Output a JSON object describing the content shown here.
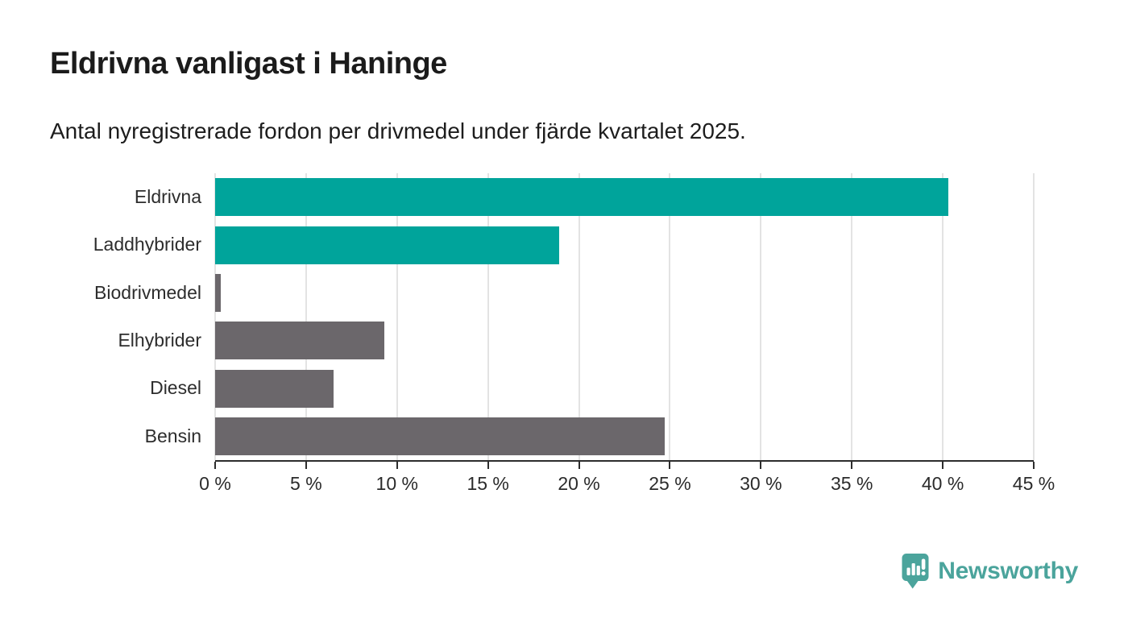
{
  "header": {
    "title": "Eldrivna vanligast i Haninge",
    "subtitle": "Antal nyregistrerade fordon per drivmedel under fjärde kvartalet 2025."
  },
  "chart_data": {
    "type": "bar",
    "orientation": "horizontal",
    "title": "Eldrivna vanligast i Haninge",
    "subtitle": "Antal nyregistrerade fordon per drivmedel under fjärde kvartalet 2025.",
    "categories": [
      "Eldrivna",
      "Laddhybrider",
      "Biodrivmedel",
      "Elhybrider",
      "Diesel",
      "Bensin"
    ],
    "values": [
      40.3,
      18.9,
      0.3,
      9.3,
      6.5,
      24.7
    ],
    "unit": "%",
    "bar_colors": [
      "#00a49b",
      "#00a49b",
      "#6b676b",
      "#6b676b",
      "#6b676b",
      "#6b676b"
    ],
    "xlim": [
      0,
      45
    ],
    "x_tick_values": [
      0,
      5,
      10,
      15,
      20,
      25,
      30,
      35,
      40,
      45
    ],
    "x_tick_labels": [
      "0 %",
      "5 %",
      "10 %",
      "15 %",
      "20 %",
      "25 %",
      "30 %",
      "35 %",
      "40 %",
      "45 %"
    ],
    "grid": true,
    "legend": false
  },
  "footer": {
    "brand": "Newsworthy",
    "logo_icon": "newsworthy-bubble-chart-icon"
  },
  "colors": {
    "accent_teal": "#00a49b",
    "bar_gray": "#6b676b",
    "gridline": "#e3e3e3",
    "axis": "#2d2d2d",
    "text": "#1b1b1b",
    "brand_teal": "#4ba49c"
  }
}
